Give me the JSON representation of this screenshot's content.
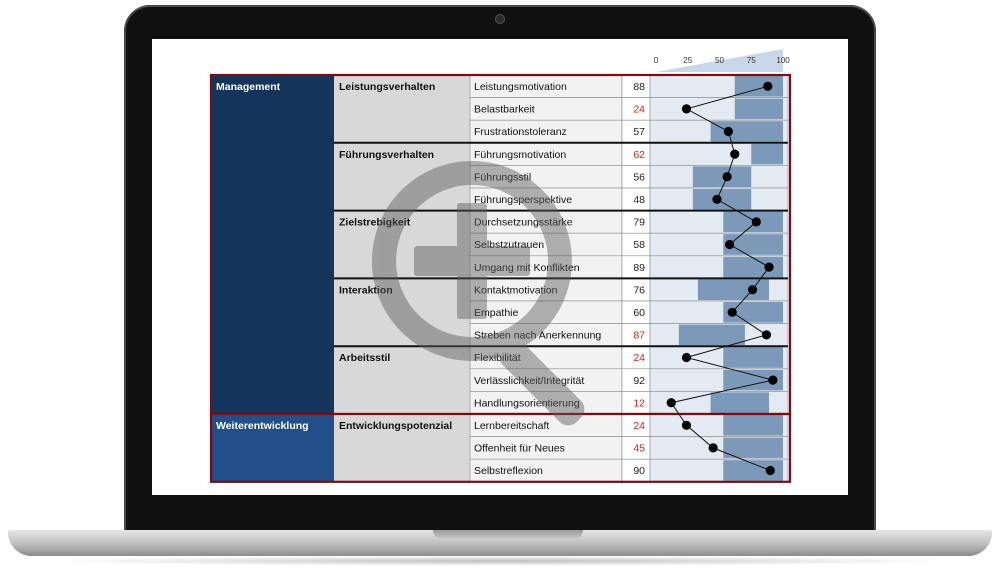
{
  "icons": {
    "watermark": "zoom-in-icon",
    "device": "laptop-icon"
  },
  "colors": {
    "management": "#15345c",
    "weiterentwicklung": "#224f88",
    "group_border": "#7a0c12",
    "category_bg": "#d8d8d8",
    "band": "#7d99b9",
    "band_light": "#e4eaf1",
    "low_value": "#cc1f1f",
    "normal_value": "#222222"
  },
  "chart_data": {
    "type": "scatter",
    "scale_ticks": [
      0,
      25,
      50,
      75,
      100
    ],
    "xlim": [
      0,
      100
    ],
    "groups": [
      {
        "name": "Management",
        "categories": [
          {
            "name": "Leistungsverhalten",
            "items": [
              {
                "label": "Leistungsmotivation",
                "value": 88,
                "low": false,
                "band": [
                  62,
                  100
                ]
              },
              {
                "label": "Belastbarkeit",
                "value": 24,
                "low": true,
                "band": [
                  62,
                  100
                ]
              },
              {
                "label": "Frustrationstoleranz",
                "value": 57,
                "low": false,
                "band": [
                  43,
                  100
                ]
              }
            ]
          },
          {
            "name": "Führungsverhalten",
            "items": [
              {
                "label": "Führungsmotivation",
                "value": 62,
                "low": true,
                "band": [
                  75,
                  100
                ]
              },
              {
                "label": "Führungsstil",
                "value": 56,
                "low": false,
                "band": [
                  29,
                  75
                ]
              },
              {
                "label": "Führungsperspektive",
                "value": 48,
                "low": false,
                "band": [
                  29,
                  75
                ]
              }
            ]
          },
          {
            "name": "Zielstrebigkeit",
            "items": [
              {
                "label": "Durchsetzungsstärke",
                "value": 79,
                "low": false,
                "band": [
                  53,
                  100
                ]
              },
              {
                "label": "Selbstzutrauen",
                "value": 58,
                "low": false,
                "band": [
                  53,
                  100
                ]
              },
              {
                "label": "Umgang mit Konflikten",
                "value": 89,
                "low": false,
                "band": [
                  53,
                  100
                ]
              }
            ]
          },
          {
            "name": "Interaktion",
            "items": [
              {
                "label": "Kontaktmotivation",
                "value": 76,
                "low": false,
                "band": [
                  33,
                  89
                ]
              },
              {
                "label": "Empathie",
                "value": 60,
                "low": false,
                "band": [
                  53,
                  100
                ]
              },
              {
                "label": "Streben nach Anerkennung",
                "value": 87,
                "low": true,
                "band": [
                  18,
                  70
                ]
              }
            ]
          },
          {
            "name": "Arbeitsstil",
            "items": [
              {
                "label": "Flexibilität",
                "value": 24,
                "low": true,
                "band": [
                  53,
                  100
                ]
              },
              {
                "label": "Verlässlichkeit/Integrität",
                "value": 92,
                "low": false,
                "band": [
                  53,
                  100
                ]
              },
              {
                "label": "Handlungsorientierung",
                "value": 12,
                "low": true,
                "band": [
                  43,
                  89
                ]
              }
            ]
          }
        ]
      },
      {
        "name": "Weiterentwicklung",
        "categories": [
          {
            "name": "Entwicklungspotenzial",
            "items": [
              {
                "label": "Lernbereitschaft",
                "value": 24,
                "low": true,
                "band": [
                  53,
                  100
                ]
              },
              {
                "label": "Offenheit für Neues",
                "value": 45,
                "low": true,
                "band": [
                  53,
                  100
                ]
              },
              {
                "label": "Selbstreflexion",
                "value": 90,
                "low": false,
                "band": [
                  53,
                  100
                ]
              }
            ]
          }
        ]
      }
    ]
  }
}
